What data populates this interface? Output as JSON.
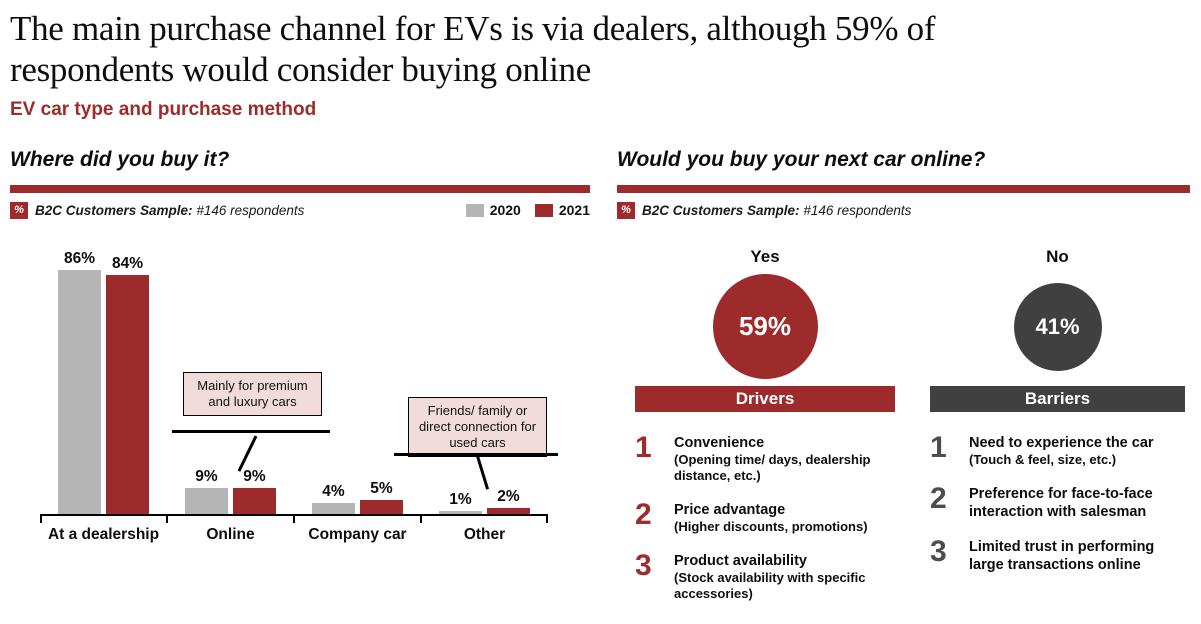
{
  "header": {
    "title_line1": "The main purchase channel for EVs is via dealers, although 59% of",
    "title_line2": "respondents would consider buying online",
    "subtitle": "EV car type and purchase method"
  },
  "colors": {
    "accent_red": "#9E2B2B",
    "gray_2020": "#B5B5B5",
    "dark_gray": "#404040",
    "barrier_number_gray": "#4D4D4D",
    "annotation_pink": "#F2DCDB"
  },
  "left": {
    "question": "Where did you buy it?",
    "sample": {
      "badge": "%",
      "label": "B2C Customers Sample:",
      "value": "#146 respondents"
    }
  },
  "right": {
    "question": "Would you buy your next car online?",
    "sample": {
      "badge": "%",
      "label": "B2C Customers Sample:",
      "value": "#146 respondents"
    },
    "yes": {
      "label": "Yes",
      "display": "59%"
    },
    "no": {
      "label": "No",
      "display": "41%"
    },
    "drivers": {
      "title": "Drivers",
      "accent": "#9E2B2B",
      "banner_color": "#9E2B2B",
      "items": [
        {
          "num": "1",
          "title": "Convenience",
          "detail": "(Opening time/ days, dealership distance, etc.)"
        },
        {
          "num": "2",
          "title": "Price advantage",
          "detail": "(Higher discounts, promotions)"
        },
        {
          "num": "3",
          "title": "Product availability",
          "detail": "(Stock availability with specific accessories)"
        }
      ]
    },
    "barriers": {
      "title": "Barriers",
      "accent": "#4D4D4D",
      "banner_color": "#404040",
      "items": [
        {
          "num": "1",
          "title": "Need to experience the car",
          "detail": "(Touch & feel, size, etc.)"
        },
        {
          "num": "2",
          "title": "Preference for face-to-face interaction with salesman",
          "detail": ""
        },
        {
          "num": "3",
          "title": "Limited trust in performing large transactions online",
          "detail": ""
        }
      ]
    }
  },
  "chart_data": [
    {
      "type": "bar",
      "title": "Where did you buy it?",
      "subtitle": "B2C Customers Sample: #146 respondents",
      "categories": [
        "At a dealership",
        "Online",
        "Company car",
        "Other"
      ],
      "series": [
        {
          "name": "2020",
          "color": "#B5B5B5",
          "values": [
            86,
            9,
            4,
            1
          ]
        },
        {
          "name": "2021",
          "color": "#9E2B2B",
          "values": [
            84,
            9,
            5,
            2
          ]
        }
      ],
      "unit": "%",
      "ylim": [
        0,
        100
      ],
      "grid": false,
      "legend_position": "top-right",
      "annotations": [
        {
          "text": "Mainly for premium and luxury cars",
          "points_to": "Online"
        },
        {
          "text": "Friends/ family or direct connection for used cars",
          "points_to": "Other"
        }
      ]
    },
    {
      "type": "pie",
      "title": "Would you buy your next car online?",
      "subtitle": "B2C Customers Sample: #146 respondents",
      "categories": [
        "Yes",
        "No"
      ],
      "values": [
        59,
        41
      ],
      "colors": [
        "#9E2B2B",
        "#404040"
      ],
      "unit": "%"
    }
  ]
}
